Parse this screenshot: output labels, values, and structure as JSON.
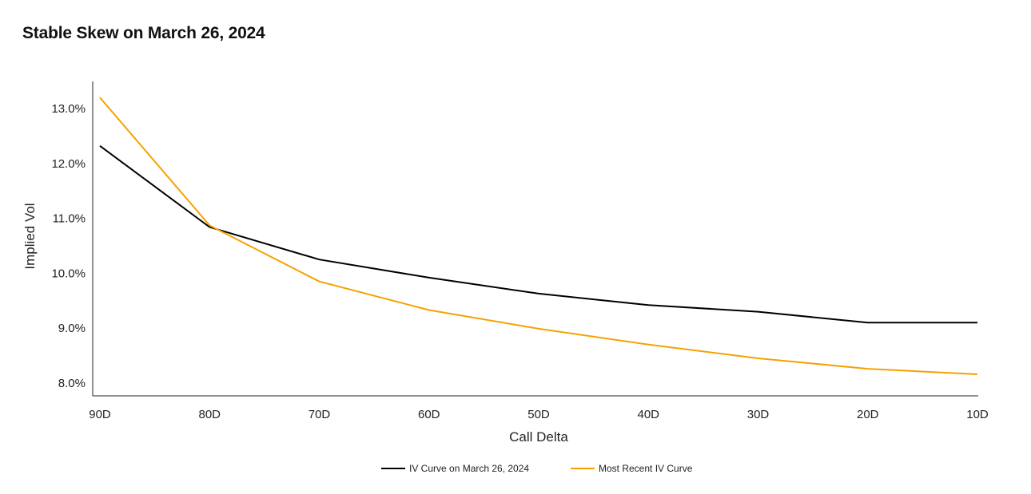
{
  "chart_data": {
    "type": "line",
    "title": "Stable Skew on March 26, 2024",
    "xlabel": "Call Delta",
    "ylabel": "Implied Vol",
    "categories": [
      "90D",
      "80D",
      "70D",
      "60D",
      "50D",
      "40D",
      "30D",
      "20D",
      "10D"
    ],
    "yticks": [
      "8.0%",
      "9.0%",
      "10.0%",
      "11.0%",
      "12.0%",
      "13.0%"
    ],
    "ytick_values": [
      8.0,
      9.0,
      10.0,
      11.0,
      12.0,
      13.0
    ],
    "ylim": [
      7.78,
      13.5
    ],
    "grid": false,
    "legend_position": "bottom-center",
    "series": [
      {
        "name": "IV Curve on March 26, 2024",
        "color": "#000000",
        "values": [
          12.32,
          10.84,
          10.25,
          9.92,
          9.63,
          9.42,
          9.3,
          9.1,
          9.1
        ]
      },
      {
        "name": "Most Recent IV Curve",
        "color": "#F5A200",
        "values": [
          13.2,
          10.87,
          9.85,
          9.33,
          8.99,
          8.7,
          8.45,
          8.26,
          8.16
        ]
      }
    ]
  }
}
